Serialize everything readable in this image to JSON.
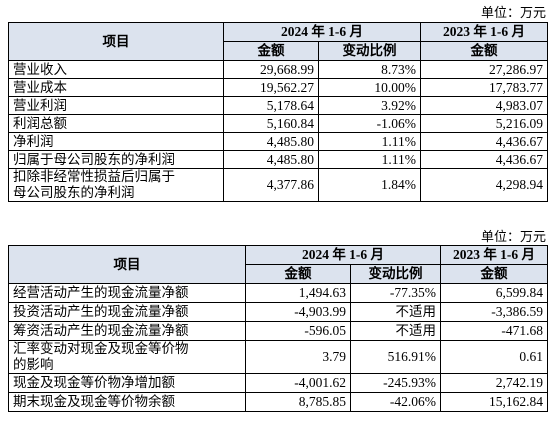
{
  "tables": [
    {
      "unit": "单位：万元",
      "header": {
        "item": "项目",
        "period1": "2024 年 1-6 月",
        "amount1": "金额",
        "change": "变动比例",
        "period2": "2023 年 1-6 月",
        "amount2": "金额"
      },
      "rows": [
        [
          "营业收入",
          "29,668.99",
          "8.73%",
          "27,286.97"
        ],
        [
          "营业成本",
          "19,562.27",
          "10.00%",
          "17,783.77"
        ],
        [
          "营业利润",
          "5,178.64",
          "3.92%",
          "4,983.07"
        ],
        [
          "利润总额",
          "5,160.84",
          "-1.06%",
          "5,216.09"
        ],
        [
          "净利润",
          "4,485.80",
          "1.11%",
          "4,436.67"
        ],
        [
          "归属于母公司股东的净利润",
          "4,485.80",
          "1.11%",
          "4,436.67"
        ],
        [
          "扣除非经常性损益后归属于母公司股东的净利润",
          "4,377.86",
          "1.84%",
          "4,298.94"
        ]
      ]
    },
    {
      "unit": "单位：万元",
      "header": {
        "item": "项目",
        "period1": "2024 年 1-6 月",
        "amount1": "金额",
        "change": "变动比例",
        "period2": "2023 年 1-6 月",
        "amount2": "金额"
      },
      "rows": [
        [
          "经营活动产生的现金流量净额",
          "1,494.63",
          "-77.35%",
          "6,599.84"
        ],
        [
          "投资活动产生的现金流量净额",
          "-4,903.99",
          "不适用",
          "-3,386.59"
        ],
        [
          "筹资活动产生的现金流量净额",
          "-596.05",
          "不适用",
          "-471.68"
        ],
        [
          "汇率变动对现金及现金等价物的影响",
          "3.79",
          "516.91%",
          "0.61"
        ],
        [
          "现金及现金等价物净增加额",
          "-4,001.62",
          "-245.93%",
          "2,742.19"
        ],
        [
          "期末现金及现金等价物余额",
          "8,785.85",
          "-42.06%",
          "15,162.84"
        ]
      ]
    }
  ]
}
